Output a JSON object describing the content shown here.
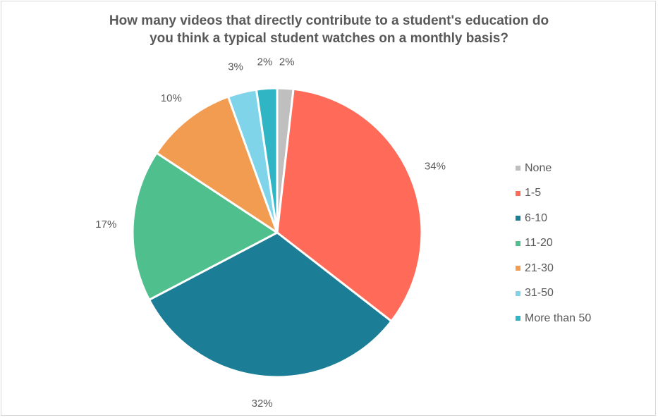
{
  "chart_data": {
    "type": "pie",
    "title_lines": [
      "How many videos that directly contribute to a student's education do",
      "you think a typical student watches on a monthly basis?"
    ],
    "legend_position": "right",
    "slices": [
      {
        "label": "None",
        "value": 1.8,
        "display": "2%",
        "color": "#bfbfbf"
      },
      {
        "label": "1-5",
        "value": 33.7,
        "display": "34%",
        "color": "#ff6b58"
      },
      {
        "label": "6-10",
        "value": 31.8,
        "display": "32%",
        "color": "#1b7e96"
      },
      {
        "label": "11-20",
        "value": 17.0,
        "display": "17%",
        "color": "#4fc08d"
      },
      {
        "label": "21-30",
        "value": 10.2,
        "display": "10%",
        "color": "#f29c51"
      },
      {
        "label": "31-50",
        "value": 3.2,
        "display": "3%",
        "color": "#7fd4ea"
      },
      {
        "label": "More than 50",
        "value": 2.3,
        "display": "2%",
        "color": "#2fb5c4"
      }
    ]
  }
}
